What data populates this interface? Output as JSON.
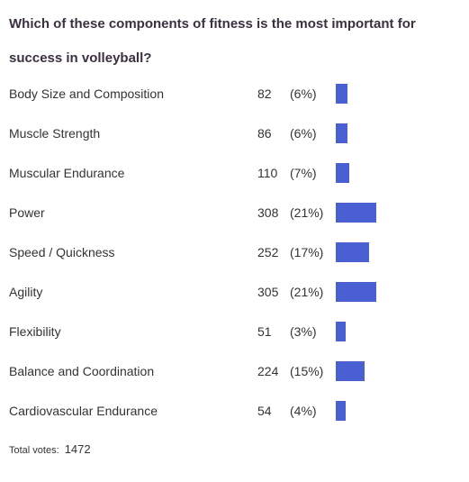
{
  "poll": {
    "question": "Which of these components of fitness is the most important for success in volleyball?",
    "bar_color": "#4a5fd1",
    "options": [
      {
        "label": "Body Size and Composition",
        "votes": "82",
        "percent": "(6%)",
        "share": 0.06
      },
      {
        "label": "Muscle Strength",
        "votes": "86",
        "percent": "(6%)",
        "share": 0.06
      },
      {
        "label": "Muscular Endurance",
        "votes": "110",
        "percent": "(7%)",
        "share": 0.07
      },
      {
        "label": "Power",
        "votes": "308",
        "percent": "(21%)",
        "share": 0.21
      },
      {
        "label": "Speed / Quickness",
        "votes": "252",
        "percent": "(17%)",
        "share": 0.17
      },
      {
        "label": "Agility",
        "votes": "305",
        "percent": "(21%)",
        "share": 0.21
      },
      {
        "label": "Flexibility",
        "votes": "51",
        "percent": "(3%)",
        "share": 0.03
      },
      {
        "label": "Balance and Coordination",
        "votes": "224",
        "percent": "(15%)",
        "share": 0.15
      },
      {
        "label": "Cardiovascular Endurance",
        "votes": "54",
        "percent": "(4%)",
        "share": 0.04
      }
    ],
    "total_label": "Total votes:",
    "total_votes": "1472"
  }
}
